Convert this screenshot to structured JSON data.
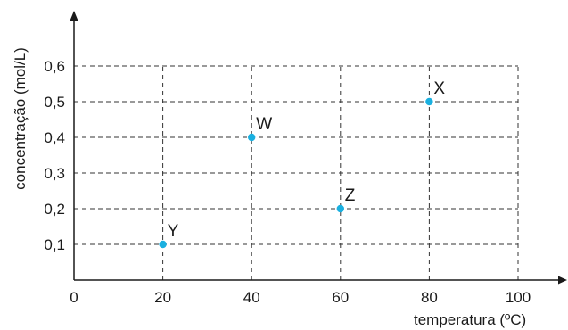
{
  "chart_data": {
    "type": "scatter",
    "title": "",
    "xlabel": "temperatura (ºC)",
    "ylabel": "concentração (mol/L)",
    "xlim": [
      0,
      100
    ],
    "ylim": [
      0,
      0.6
    ],
    "x_ticks": [
      0,
      20,
      40,
      60,
      80,
      100
    ],
    "x_tick_labels": [
      "0",
      "20",
      "40",
      "60",
      "80",
      "100"
    ],
    "y_ticks": [
      0.1,
      0.2,
      0.3,
      0.4,
      0.5,
      0.6
    ],
    "y_tick_labels": [
      "0,1",
      "0,2",
      "0,3",
      "0,4",
      "0,5",
      "0,6"
    ],
    "grid": true,
    "grid_style": "dashed",
    "point_color": "#1ab0e0",
    "points": [
      {
        "label": "Y",
        "x": 20,
        "y": 0.1
      },
      {
        "label": "W",
        "x": 40,
        "y": 0.4
      },
      {
        "label": "Z",
        "x": 60,
        "y": 0.2
      },
      {
        "label": "X",
        "x": 80,
        "y": 0.5
      }
    ]
  }
}
